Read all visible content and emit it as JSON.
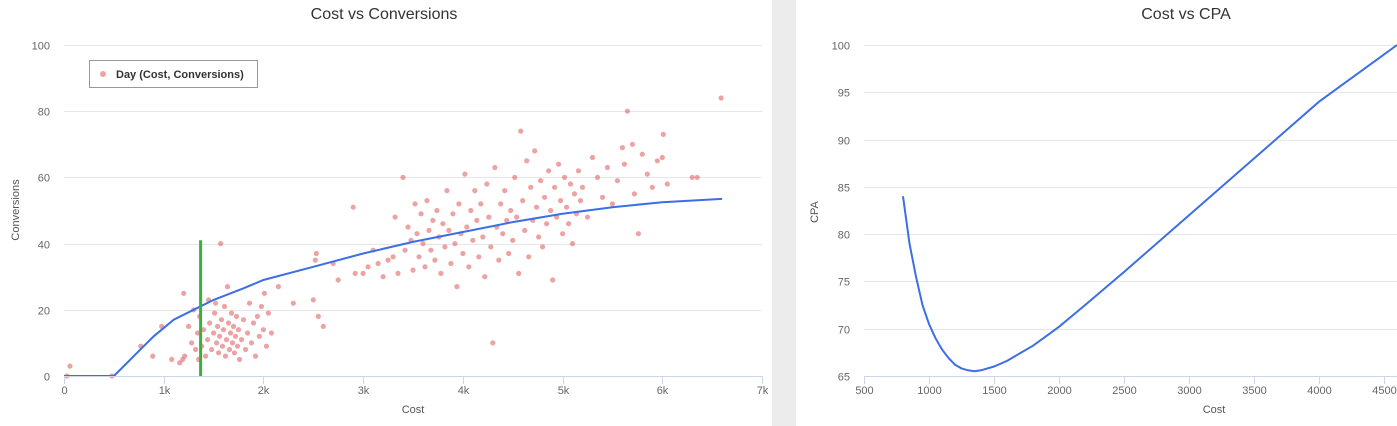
{
  "chart_data": [
    {
      "type": "scatter",
      "title": "Cost vs Conversions",
      "xlabel": "Cost",
      "ylabel": "Conversions",
      "xlim": [
        0,
        7000
      ],
      "ylim": [
        0,
        100
      ],
      "x_ticks": [
        0,
        1000,
        2000,
        3000,
        4000,
        5000,
        6000,
        7000
      ],
      "x_tick_labels": [
        "0",
        "1k",
        "2k",
        "3k",
        "4k",
        "5k",
        "6k",
        "7k"
      ],
      "y_ticks": [
        0,
        20,
        40,
        60,
        80,
        100
      ],
      "y_tick_labels": [
        "0",
        "20",
        "40",
        "60",
        "80",
        "100"
      ],
      "grid": true,
      "legend_position": "top-left",
      "colors": {
        "points": "#e06666",
        "curve": "#3c6ee6",
        "marker": "#3cae3c"
      },
      "series": [
        {
          "name": "Day (Cost, Conversions)",
          "kind": "scatter",
          "points": [
            [
              60,
              3
            ],
            [
              30,
              0
            ],
            [
              480,
              0
            ],
            [
              770,
              9
            ],
            [
              980,
              15
            ],
            [
              890,
              6
            ],
            [
              1080,
              5
            ],
            [
              1160,
              4
            ],
            [
              1190,
              5
            ],
            [
              1200,
              25
            ],
            [
              1210,
              6
            ],
            [
              1250,
              15
            ],
            [
              1280,
              10
            ],
            [
              1300,
              20
            ],
            [
              1320,
              8
            ],
            [
              1340,
              13
            ],
            [
              1350,
              5
            ],
            [
              1360,
              18
            ],
            [
              1380,
              9
            ],
            [
              1400,
              14
            ],
            [
              1420,
              6
            ],
            [
              1440,
              11
            ],
            [
              1450,
              23
            ],
            [
              1460,
              16
            ],
            [
              1480,
              8
            ],
            [
              1500,
              13
            ],
            [
              1510,
              19
            ],
            [
              1520,
              22
            ],
            [
              1530,
              10
            ],
            [
              1540,
              15
            ],
            [
              1550,
              7
            ],
            [
              1560,
              12
            ],
            [
              1570,
              40
            ],
            [
              1580,
              17
            ],
            [
              1590,
              9
            ],
            [
              1600,
              14
            ],
            [
              1610,
              21
            ],
            [
              1620,
              6
            ],
            [
              1630,
              11
            ],
            [
              1640,
              27
            ],
            [
              1650,
              16
            ],
            [
              1660,
              8
            ],
            [
              1670,
              13
            ],
            [
              1680,
              19
            ],
            [
              1690,
              10
            ],
            [
              1700,
              15
            ],
            [
              1710,
              7
            ],
            [
              1720,
              12
            ],
            [
              1730,
              18
            ],
            [
              1740,
              9
            ],
            [
              1750,
              14
            ],
            [
              1760,
              5
            ],
            [
              1780,
              11
            ],
            [
              1800,
              17
            ],
            [
              1820,
              8
            ],
            [
              1840,
              13
            ],
            [
              1860,
              22
            ],
            [
              1880,
              10
            ],
            [
              1900,
              16
            ],
            [
              1920,
              6
            ],
            [
              1940,
              18
            ],
            [
              1960,
              12
            ],
            [
              1980,
              21
            ],
            [
              2000,
              14
            ],
            [
              2010,
              25
            ],
            [
              2030,
              9
            ],
            [
              2050,
              19
            ],
            [
              2080,
              13
            ],
            [
              2150,
              27
            ],
            [
              2300,
              22
            ],
            [
              2500,
              23
            ],
            [
              2550,
              18
            ],
            [
              2600,
              15
            ],
            [
              2520,
              35
            ],
            [
              2530,
              37
            ],
            [
              2700,
              34
            ],
            [
              2750,
              29
            ],
            [
              2900,
              51
            ],
            [
              2920,
              31
            ],
            [
              3000,
              31
            ],
            [
              3050,
              33
            ],
            [
              3100,
              38
            ],
            [
              3150,
              34
            ],
            [
              3200,
              30
            ],
            [
              3250,
              35
            ],
            [
              3300,
              36
            ],
            [
              3320,
              48
            ],
            [
              3350,
              31
            ],
            [
              3400,
              60
            ],
            [
              3420,
              38
            ],
            [
              3450,
              45
            ],
            [
              3480,
              41
            ],
            [
              3500,
              32
            ],
            [
              3520,
              52
            ],
            [
              3540,
              43
            ],
            [
              3560,
              36
            ],
            [
              3580,
              49
            ],
            [
              3600,
              40
            ],
            [
              3620,
              33
            ],
            [
              3640,
              53
            ],
            [
              3660,
              44
            ],
            [
              3680,
              38
            ],
            [
              3700,
              47
            ],
            [
              3720,
              35
            ],
            [
              3740,
              50
            ],
            [
              3760,
              42
            ],
            [
              3780,
              31
            ],
            [
              3800,
              46
            ],
            [
              3820,
              39
            ],
            [
              3840,
              56
            ],
            [
              3860,
              44
            ],
            [
              3880,
              34
            ],
            [
              3900,
              49
            ],
            [
              3920,
              40
            ],
            [
              3940,
              27
            ],
            [
              3960,
              52
            ],
            [
              3980,
              43
            ],
            [
              4000,
              37
            ],
            [
              4020,
              61
            ],
            [
              4040,
              45
            ],
            [
              4060,
              33
            ],
            [
              4080,
              50
            ],
            [
              4100,
              41
            ],
            [
              4120,
              56
            ],
            [
              4140,
              47
            ],
            [
              4160,
              36
            ],
            [
              4180,
              52
            ],
            [
              4200,
              42
            ],
            [
              4220,
              30
            ],
            [
              4240,
              58
            ],
            [
              4260,
              48
            ],
            [
              4280,
              39
            ],
            [
              4300,
              10
            ],
            [
              4320,
              63
            ],
            [
              4340,
              45
            ],
            [
              4360,
              35
            ],
            [
              4380,
              52
            ],
            [
              4400,
              43
            ],
            [
              4420,
              56
            ],
            [
              4440,
              47
            ],
            [
              4460,
              37
            ],
            [
              4480,
              50
            ],
            [
              4500,
              41
            ],
            [
              4520,
              60
            ],
            [
              4540,
              48
            ],
            [
              4560,
              31
            ],
            [
              4580,
              74
            ],
            [
              4600,
              53
            ],
            [
              4620,
              44
            ],
            [
              4640,
              65
            ],
            [
              4660,
              36
            ],
            [
              4680,
              57
            ],
            [
              4700,
              47
            ],
            [
              4720,
              68
            ],
            [
              4740,
              51
            ],
            [
              4760,
              42
            ],
            [
              4780,
              59
            ],
            [
              4800,
              39
            ],
            [
              4820,
              54
            ],
            [
              4840,
              46
            ],
            [
              4860,
              62
            ],
            [
              4880,
              50
            ],
            [
              4900,
              29
            ],
            [
              4920,
              57
            ],
            [
              4940,
              48
            ],
            [
              4960,
              64
            ],
            [
              4980,
              53
            ],
            [
              5000,
              43
            ],
            [
              5020,
              60
            ],
            [
              5040,
              51
            ],
            [
              5060,
              46
            ],
            [
              5080,
              58
            ],
            [
              5100,
              40
            ],
            [
              5120,
              55
            ],
            [
              5140,
              49
            ],
            [
              5160,
              62
            ],
            [
              5180,
              53
            ],
            [
              5200,
              57
            ],
            [
              5250,
              48
            ],
            [
              5300,
              66
            ],
            [
              5350,
              60
            ],
            [
              5400,
              54
            ],
            [
              5450,
              63
            ],
            [
              5500,
              52
            ],
            [
              5550,
              59
            ],
            [
              5600,
              69
            ],
            [
              5620,
              64
            ],
            [
              5650,
              80
            ],
            [
              5700,
              70
            ],
            [
              5720,
              55
            ],
            [
              5760,
              43
            ],
            [
              5800,
              67
            ],
            [
              5850,
              61
            ],
            [
              5900,
              57
            ],
            [
              5950,
              65
            ],
            [
              6000,
              66
            ],
            [
              6010,
              73
            ],
            [
              6050,
              58
            ],
            [
              6300,
              60
            ],
            [
              6350,
              60
            ],
            [
              6590,
              84
            ]
          ]
        },
        {
          "name": "",
          "kind": "line",
          "points": [
            [
              0,
              0
            ],
            [
              500,
              0
            ],
            [
              700,
              6
            ],
            [
              900,
              12
            ],
            [
              1100,
              17
            ],
            [
              1300,
              20
            ],
            [
              1500,
              23
            ],
            [
              1800,
              26.5
            ],
            [
              2000,
              29
            ],
            [
              2500,
              33
            ],
            [
              3000,
              37
            ],
            [
              3500,
              40.5
            ],
            [
              4000,
              43.5
            ],
            [
              4500,
              46.5
            ],
            [
              5000,
              49
            ],
            [
              5500,
              51
            ],
            [
              6000,
              52.5
            ],
            [
              6600,
              53.5
            ]
          ]
        },
        {
          "name": "",
          "kind": "vertical-marker",
          "x": 1370,
          "y_range": [
            0,
            41
          ]
        }
      ]
    },
    {
      "type": "line",
      "title": "Cost vs CPA",
      "xlabel": "Cost",
      "ylabel": "CPA",
      "xlim": [
        500,
        4600
      ],
      "ylim": [
        65,
        100
      ],
      "x_ticks": [
        500,
        1000,
        1500,
        2000,
        2500,
        3000,
        3500,
        4000,
        4500
      ],
      "x_tick_labels": [
        "500",
        "1000",
        "1500",
        "2000",
        "2500",
        "3000",
        "3500",
        "4000",
        "4500"
      ],
      "y_ticks": [
        65,
        70,
        75,
        80,
        85,
        90,
        95,
        100
      ],
      "y_tick_labels": [
        "65",
        "70",
        "75",
        "80",
        "85",
        "90",
        "95",
        "100"
      ],
      "grid": true,
      "colors": {
        "curve": "#3c6ee6"
      },
      "series": [
        {
          "name": "",
          "points": [
            [
              800,
              84
            ],
            [
              850,
              79
            ],
            [
              900,
              75.5
            ],
            [
              950,
              72.5
            ],
            [
              1000,
              70.5
            ],
            [
              1050,
              69
            ],
            [
              1100,
              67.8
            ],
            [
              1150,
              66.9
            ],
            [
              1200,
              66.2
            ],
            [
              1250,
              65.8
            ],
            [
              1300,
              65.6
            ],
            [
              1350,
              65.5
            ],
            [
              1400,
              65.6
            ],
            [
              1500,
              66
            ],
            [
              1600,
              66.6
            ],
            [
              1700,
              67.4
            ],
            [
              1800,
              68.2
            ],
            [
              1900,
              69.2
            ],
            [
              2000,
              70.2
            ],
            [
              2200,
              72.5
            ],
            [
              2500,
              76
            ],
            [
              3000,
              82
            ],
            [
              3500,
              88
            ],
            [
              4000,
              94
            ],
            [
              4600,
              100
            ]
          ]
        }
      ]
    }
  ]
}
